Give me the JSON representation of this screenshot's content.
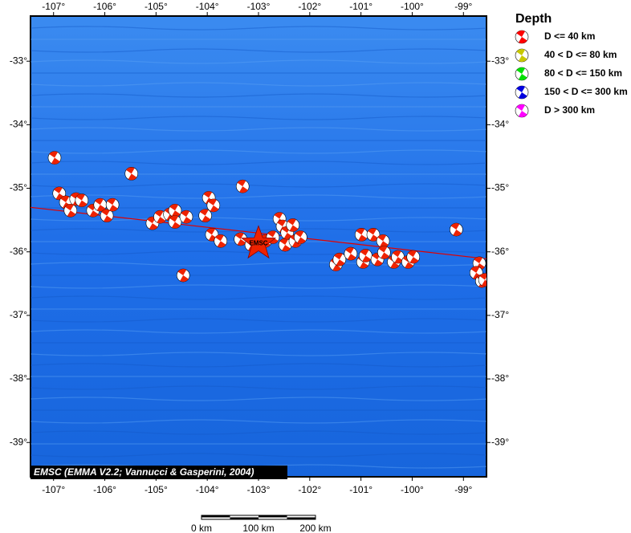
{
  "map": {
    "xlim": [
      -107.45,
      -98.55
    ],
    "ylim": [
      -39.54,
      -32.29
    ],
    "xticks": [
      {
        "value": -107,
        "label": "-107°"
      },
      {
        "value": -106,
        "label": "-106°"
      },
      {
        "value": -105,
        "label": "-105°"
      },
      {
        "value": -104,
        "label": "-104°"
      },
      {
        "value": -103,
        "label": "-103°"
      },
      {
        "value": -102,
        "label": "-102°"
      },
      {
        "value": -101,
        "label": "-101°"
      },
      {
        "value": -100,
        "label": "-100°"
      },
      {
        "value": -99,
        "label": "-99°"
      }
    ],
    "yticks": [
      {
        "value": -33,
        "label": "-33°"
      },
      {
        "value": -34,
        "label": "-34°"
      },
      {
        "value": -35,
        "label": "-35°"
      },
      {
        "value": -36,
        "label": "-36°"
      },
      {
        "value": -37,
        "label": "-37°"
      },
      {
        "value": -38,
        "label": "-38°"
      },
      {
        "value": -39,
        "label": "-39°"
      }
    ],
    "fault_line": {
      "lon": [
        -107.45,
        -98.55
      ],
      "lat": [
        -35.3,
        -36.11
      ]
    },
    "events": [
      {
        "lon": -106.98,
        "lat": -34.52
      },
      {
        "lon": -106.89,
        "lat": -35.08
      },
      {
        "lon": -106.76,
        "lat": -35.22
      },
      {
        "lon": -106.67,
        "lat": -35.35
      },
      {
        "lon": -106.56,
        "lat": -35.17
      },
      {
        "lon": -106.45,
        "lat": -35.19
      },
      {
        "lon": -106.23,
        "lat": -35.35
      },
      {
        "lon": -106.09,
        "lat": -35.26
      },
      {
        "lon": -105.96,
        "lat": -35.43
      },
      {
        "lon": -105.85,
        "lat": -35.26
      },
      {
        "lon": -105.48,
        "lat": -34.77
      },
      {
        "lon": -105.07,
        "lat": -35.55
      },
      {
        "lon": -104.92,
        "lat": -35.45
      },
      {
        "lon": -104.73,
        "lat": -35.41
      },
      {
        "lon": -104.63,
        "lat": -35.35
      },
      {
        "lon": -104.63,
        "lat": -35.53
      },
      {
        "lon": -104.41,
        "lat": -35.45
      },
      {
        "lon": -104.04,
        "lat": -35.43
      },
      {
        "lon": -103.97,
        "lat": -35.15
      },
      {
        "lon": -103.88,
        "lat": -35.27
      },
      {
        "lon": -103.91,
        "lat": -35.73
      },
      {
        "lon": -103.74,
        "lat": -35.83
      },
      {
        "lon": -103.31,
        "lat": -34.97
      },
      {
        "lon": -103.35,
        "lat": -35.8
      },
      {
        "lon": -103.14,
        "lat": -35.89
      },
      {
        "lon": -102.87,
        "lat": -35.83
      },
      {
        "lon": -102.72,
        "lat": -35.77
      },
      {
        "lon": -102.59,
        "lat": -35.48
      },
      {
        "lon": -102.53,
        "lat": -35.6
      },
      {
        "lon": -102.48,
        "lat": -35.89
      },
      {
        "lon": -102.44,
        "lat": -35.7
      },
      {
        "lon": -102.33,
        "lat": -35.58
      },
      {
        "lon": -102.28,
        "lat": -35.83
      },
      {
        "lon": -102.18,
        "lat": -35.77
      },
      {
        "lon": -101.49,
        "lat": -36.2
      },
      {
        "lon": -101.42,
        "lat": -36.12
      },
      {
        "lon": -101.2,
        "lat": -36.03
      },
      {
        "lon": -100.99,
        "lat": -35.73
      },
      {
        "lon": -100.96,
        "lat": -36.16
      },
      {
        "lon": -100.91,
        "lat": -36.06
      },
      {
        "lon": -100.76,
        "lat": -35.73
      },
      {
        "lon": -100.68,
        "lat": -36.12
      },
      {
        "lon": -100.57,
        "lat": -35.83
      },
      {
        "lon": -100.55,
        "lat": -36.01
      },
      {
        "lon": -100.36,
        "lat": -36.16
      },
      {
        "lon": -100.28,
        "lat": -36.08
      },
      {
        "lon": -100.08,
        "lat": -36.16
      },
      {
        "lon": -99.98,
        "lat": -36.08
      },
      {
        "lon": -99.14,
        "lat": -35.65
      },
      {
        "lon": -98.69,
        "lat": -36.18
      },
      {
        "lon": -98.75,
        "lat": -36.33
      },
      {
        "lon": -98.64,
        "lat": -36.46
      },
      {
        "lon": -98.58,
        "lat": -36.44
      },
      {
        "lon": -104.47,
        "lat": -36.37
      }
    ],
    "main_event": {
      "lon": -103.0,
      "lat": -35.87,
      "label": "EMSC"
    },
    "credit": "EMSC (EMMA V2.2; Vannucci & Gasperini, 2004)",
    "legend": {
      "title": "Depth",
      "items": [
        {
          "label": "D <= 40 km",
          "color": "#ff0000"
        },
        {
          "label": "40 < D <= 80 km",
          "color": "#c8c800"
        },
        {
          "label": "80 < D <= 150 km",
          "color": "#00e000"
        },
        {
          "label": "150 < D <= 300 km",
          "color": "#0000e0"
        },
        {
          "label": "D > 300 km",
          "color": "#ff00ff"
        }
      ]
    },
    "scale_bar": {
      "labels": [
        "0 km",
        "100 km",
        "200 km"
      ]
    }
  }
}
